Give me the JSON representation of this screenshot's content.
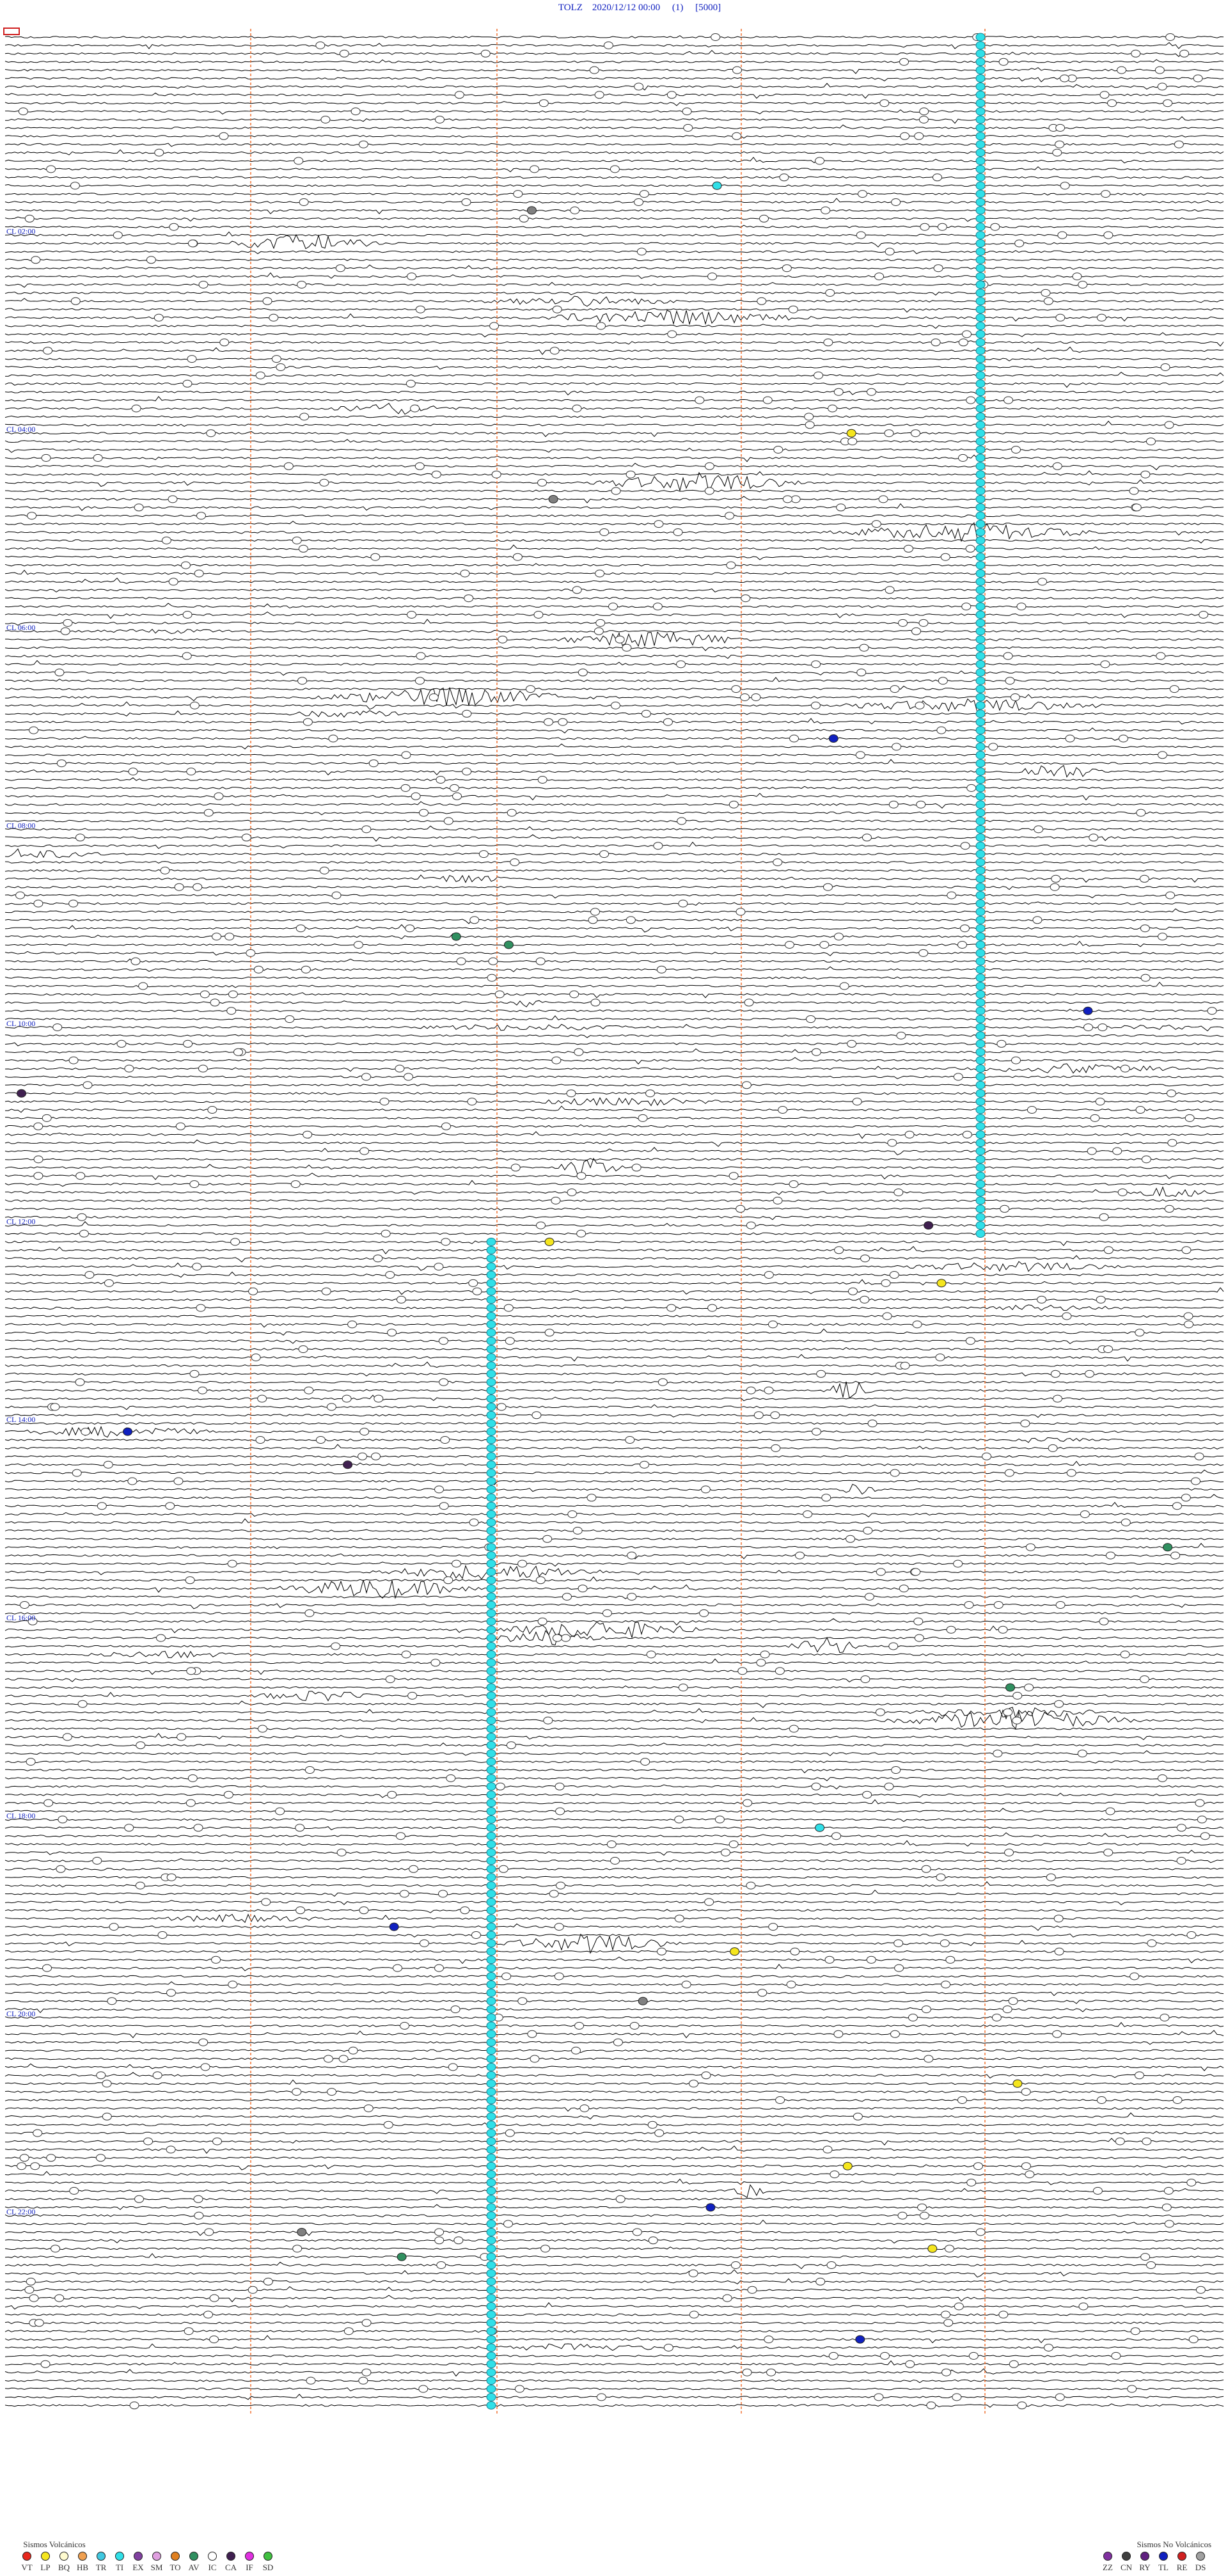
{
  "header": {
    "title": "TOLZ    2020/12/12 00:00     (1)     [5000]"
  },
  "hour_labels": [
    "CL 02:00",
    "CL 04:00",
    "CL 06:00",
    "CL 08:00",
    "CL 10:00",
    "CL 12:00",
    "CL 14:00",
    "CL 16:00",
    "CL 18:00",
    "CL 20:00",
    "CL 22:00"
  ],
  "legend": {
    "volcanic": {
      "title": "Sismos Volcánicos",
      "items": [
        {
          "code": "VT",
          "color": "#e8281e"
        },
        {
          "code": "LP",
          "color": "#f5e61e"
        },
        {
          "code": "BQ",
          "color": "#fffbd0"
        },
        {
          "code": "HB",
          "color": "#f0a050"
        },
        {
          "code": "TR",
          "color": "#40c8e0"
        },
        {
          "code": "TI",
          "color": "#30e0e8"
        },
        {
          "code": "EX",
          "color": "#8040a0"
        },
        {
          "code": "SM",
          "color": "#e0a0e0"
        },
        {
          "code": "TO",
          "color": "#e08020"
        },
        {
          "code": "AV",
          "color": "#309060"
        },
        {
          "code": "IC",
          "color": "#ffffff"
        },
        {
          "code": "CA",
          "color": "#402050"
        },
        {
          "code": "IF",
          "color": "#e030e0"
        },
        {
          "code": "SD",
          "color": "#40c040"
        }
      ]
    },
    "non_volcanic": {
      "title": "Sismos No Volcánicos",
      "items": [
        {
          "code": "ZZ",
          "color": "#8030a0"
        },
        {
          "code": "CN",
          "color": "#404040"
        },
        {
          "code": "RY",
          "color": "#602080"
        },
        {
          "code": "TL",
          "color": "#1020c0"
        },
        {
          "code": "RE",
          "color": "#d02020"
        },
        {
          "code": "DS",
          "color": "#a0a0a0"
        }
      ]
    }
  }
}
